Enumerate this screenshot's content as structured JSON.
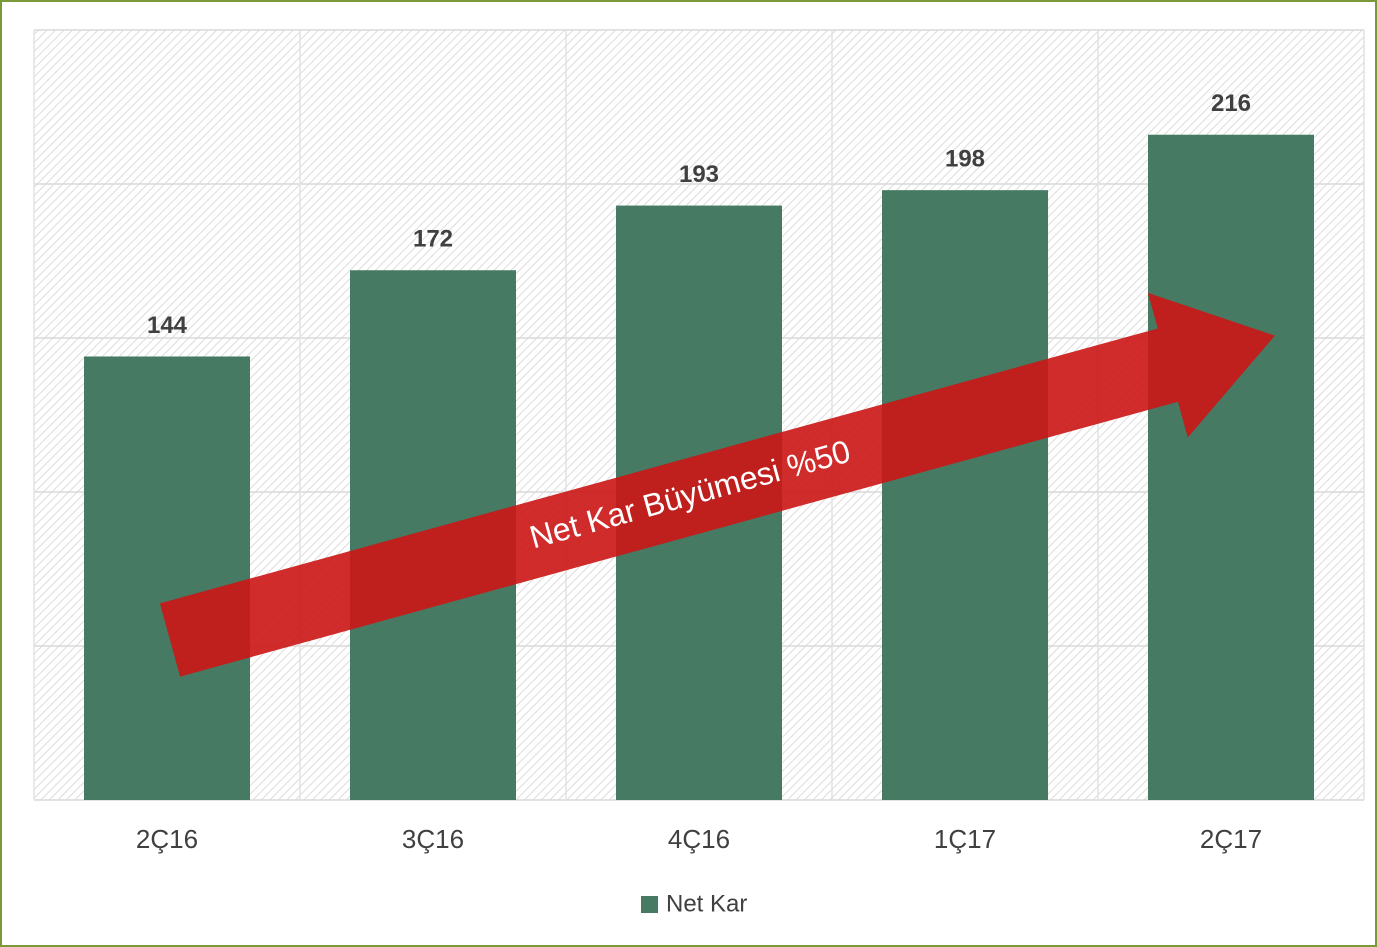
{
  "chart_data": {
    "type": "bar",
    "categories": [
      "2Ç16",
      "3Ç16",
      "4Ç16",
      "1Ç17",
      "2Ç17"
    ],
    "series": [
      {
        "name": "Net Kar",
        "color": "#467a63",
        "values": [
          144,
          172,
          193,
          198,
          216
        ]
      }
    ],
    "ylim": [
      0,
      250
    ],
    "yticks": [
      0,
      50,
      100,
      150,
      200,
      250
    ],
    "grid": true,
    "legend": "bottom",
    "annotations": [
      "Net Kar Büyümesi %50"
    ]
  }
}
